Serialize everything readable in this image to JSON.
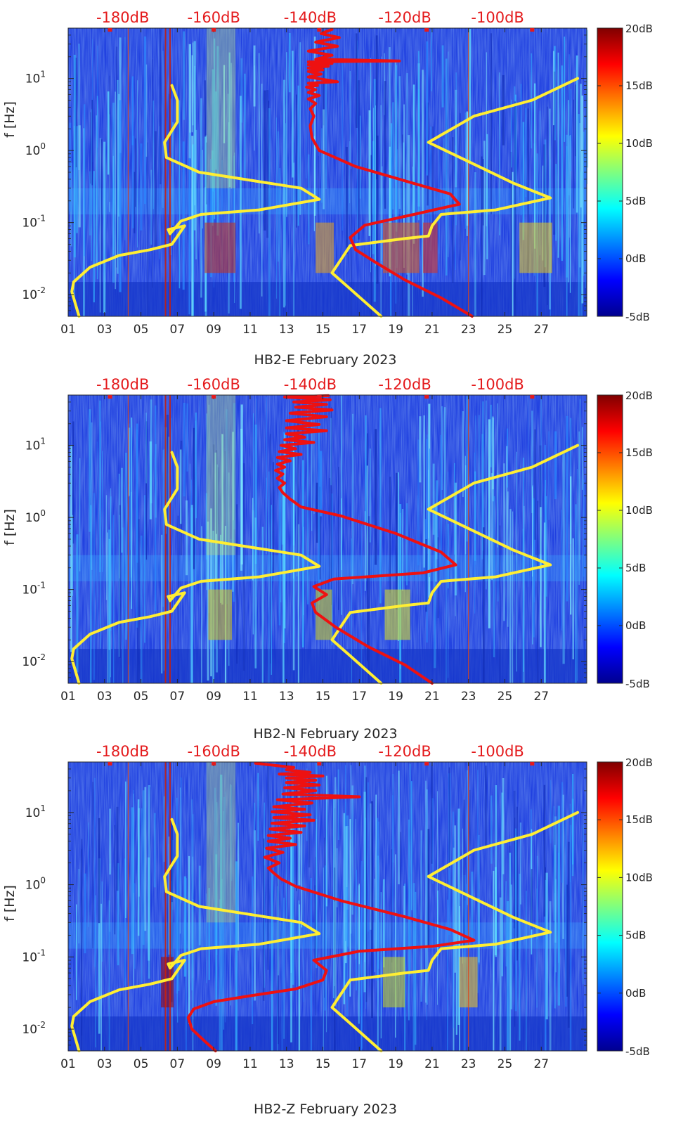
{
  "chart_data": [
    {
      "type": "heatmap",
      "xlabel": "HB2-E February 2023",
      "ylabel": "f [Hz]",
      "x_ticks": [
        "01",
        "03",
        "05",
        "07",
        "09",
        "11",
        "13",
        "15",
        "17",
        "19",
        "21",
        "23",
        "25",
        "27"
      ],
      "y_ticks": [
        "10^-2",
        "10^-1",
        "10^0",
        "10^1"
      ],
      "y_scale": "log",
      "xlim": [
        1,
        29.5
      ],
      "ylim": [
        0.005,
        50
      ],
      "top_axis_labels": [
        "-180dB",
        "-160dB",
        "-140dB",
        "-120dB",
        "-100dB"
      ],
      "colorbar": {
        "labels": [
          "20dB",
          "15dB",
          "10dB",
          "5dB",
          "0dB",
          "-5dB"
        ],
        "range": [
          -5,
          20
        ],
        "colormap": "jet"
      },
      "overlay_series": [
        {
          "color": "#ffee33",
          "x": [
            1.6,
            1.2,
            1.3,
            2.2,
            3.8,
            5.5,
            6.7,
            7.4,
            6.5,
            6.6,
            7.2,
            8.3,
            11.5,
            14.8,
            13.8,
            8.2,
            6.4,
            6.3,
            7.0,
            7.0,
            6.7
          ],
          "y": [
            0.005,
            0.011,
            0.015,
            0.024,
            0.035,
            0.042,
            0.05,
            0.09,
            0.08,
            0.07,
            0.105,
            0.13,
            0.15,
            0.21,
            0.3,
            0.5,
            0.8,
            1.3,
            2.5,
            5,
            8
          ]
        },
        {
          "color": "#ffee33",
          "x": [
            18.2,
            16.5,
            15.5,
            16.5,
            19.5,
            20.8,
            21.0,
            21.5,
            24.5,
            27.5,
            25.5,
            20.8,
            23.3,
            26.5,
            29.0
          ],
          "y": [
            0.005,
            0.012,
            0.02,
            0.048,
            0.06,
            0.065,
            0.09,
            0.13,
            0.15,
            0.22,
            0.35,
            1.3,
            3,
            5,
            10
          ]
        },
        {
          "color": "#ee1111",
          "x": [
            23.2,
            21.5,
            19.5,
            18.0,
            16.8,
            16.5,
            17.3,
            20.0,
            22.5,
            22.0,
            20.0,
            16.8,
            14.8,
            14.4,
            14.3,
            14.5,
            14.3,
            14.6,
            14.2,
            14.8,
            14.2,
            14.6,
            14.1,
            14.7,
            14.2,
            15.8,
            14.2,
            14.9,
            14.2,
            15.0,
            14.2,
            15.3,
            14.2,
            15.5,
            14.2,
            19.2,
            14.6,
            15.5,
            14.2,
            15.8,
            14.6,
            15.9,
            14.9,
            15.5
          ],
          "y": [
            0.005,
            0.009,
            0.016,
            0.027,
            0.042,
            0.062,
            0.092,
            0.13,
            0.18,
            0.25,
            0.35,
            0.6,
            1.0,
            1.5,
            2.2,
            3.0,
            3.8,
            4.5,
            5.2,
            5.8,
            6.4,
            7.0,
            7.6,
            8.0,
            8.6,
            9.0,
            10.5,
            11.5,
            12.5,
            13.2,
            14.0,
            14.8,
            15.5,
            16.2,
            17.0,
            17.5,
            18.5,
            21,
            24,
            28,
            32,
            37,
            42,
            48
          ]
        }
      ]
    },
    {
      "type": "heatmap",
      "xlabel": "HB2-N February 2023",
      "ylabel": "f [Hz]",
      "x_ticks": [
        "01",
        "03",
        "05",
        "07",
        "09",
        "11",
        "13",
        "15",
        "17",
        "19",
        "21",
        "23",
        "25",
        "27"
      ],
      "y_ticks": [
        "10^-2",
        "10^-1",
        "10^0",
        "10^1"
      ],
      "y_scale": "log",
      "xlim": [
        1,
        29.5
      ],
      "ylim": [
        0.005,
        50
      ],
      "top_axis_labels": [
        "-180dB",
        "-160dB",
        "-140dB",
        "-120dB",
        "-100dB"
      ],
      "colorbar": {
        "labels": [
          "20dB",
          "15dB",
          "10dB",
          "5dB",
          "0dB",
          "-5dB"
        ],
        "range": [
          -5,
          20
        ],
        "colormap": "jet"
      },
      "overlay_series": [
        {
          "color": "#ffee33",
          "x": [
            1.6,
            1.2,
            1.3,
            2.2,
            3.8,
            5.5,
            6.7,
            7.4,
            6.5,
            6.6,
            7.2,
            8.3,
            11.5,
            14.8,
            13.8,
            8.2,
            6.4,
            6.3,
            7.0,
            7.0,
            6.7
          ],
          "y": [
            0.005,
            0.011,
            0.015,
            0.024,
            0.035,
            0.042,
            0.05,
            0.09,
            0.08,
            0.07,
            0.105,
            0.13,
            0.15,
            0.21,
            0.3,
            0.5,
            0.8,
            1.3,
            2.5,
            5,
            8
          ]
        },
        {
          "color": "#ffee33",
          "x": [
            18.2,
            16.5,
            15.5,
            16.5,
            19.5,
            20.8,
            21.0,
            21.5,
            24.5,
            27.5,
            25.5,
            20.8,
            23.3,
            26.5,
            29.0
          ],
          "y": [
            0.005,
            0.012,
            0.02,
            0.048,
            0.06,
            0.065,
            0.09,
            0.13,
            0.15,
            0.22,
            0.35,
            1.3,
            3,
            5,
            10
          ]
        },
        {
          "color": "#ee1111",
          "x": [
            21.0,
            19.5,
            17.5,
            15.7,
            14.6,
            14.4,
            15.2,
            14.5,
            15.6,
            20.5,
            22.3,
            21.5,
            19.0,
            16.0,
            13.8,
            13.2,
            12.8,
            12.6,
            12.9,
            12.5,
            12.8,
            12.4,
            12.9,
            12.5,
            13.2,
            12.5,
            13.8,
            12.6,
            13.5,
            12.7,
            14.5,
            12.9,
            14.0,
            13.0,
            15.2,
            13.0,
            14.8,
            13.0,
            15.2,
            13.2,
            15.5,
            13.5,
            15.2,
            13.4,
            15.4,
            12.9,
            15.3
          ],
          "y": [
            0.005,
            0.009,
            0.016,
            0.03,
            0.048,
            0.065,
            0.085,
            0.11,
            0.14,
            0.17,
            0.22,
            0.33,
            0.6,
            1.05,
            1.4,
            1.8,
            2.2,
            2.6,
            3.0,
            3.5,
            4.0,
            4.5,
            5.0,
            5.5,
            6.1,
            6.8,
            7.5,
            8.2,
            9.0,
            10.0,
            11.0,
            12.0,
            13.0,
            14.5,
            16.0,
            17.5,
            19.5,
            22,
            25,
            28,
            31,
            34,
            37,
            40,
            43,
            47,
            49
          ]
        }
      ]
    },
    {
      "type": "heatmap",
      "xlabel": "HB2-Z February 2023",
      "ylabel": "f [Hz]",
      "x_ticks": [
        "01",
        "03",
        "05",
        "07",
        "09",
        "11",
        "13",
        "15",
        "17",
        "19",
        "21",
        "23",
        "25",
        "27"
      ],
      "y_ticks": [
        "10^-2",
        "10^-1",
        "10^0",
        "10^1"
      ],
      "y_scale": "log",
      "xlim": [
        1,
        29.5
      ],
      "ylim": [
        0.005,
        50
      ],
      "top_axis_labels": [
        "-180dB",
        "-160dB",
        "-140dB",
        "-120dB",
        "-100dB"
      ],
      "colorbar": {
        "labels": [
          "20dB",
          "15dB",
          "10dB",
          "5dB",
          "0dB",
          "-5dB"
        ],
        "range": [
          -5,
          20
        ],
        "colormap": "jet"
      },
      "overlay_series": [
        {
          "color": "#ffee33",
          "x": [
            1.6,
            1.2,
            1.3,
            2.2,
            3.8,
            5.5,
            6.7,
            7.4,
            6.5,
            6.6,
            7.2,
            8.3,
            11.5,
            14.8,
            13.8,
            8.2,
            6.4,
            6.3,
            7.0,
            7.0,
            6.7
          ],
          "y": [
            0.005,
            0.011,
            0.015,
            0.024,
            0.035,
            0.042,
            0.05,
            0.09,
            0.08,
            0.07,
            0.105,
            0.13,
            0.15,
            0.21,
            0.3,
            0.5,
            0.8,
            1.3,
            2.5,
            5,
            8
          ]
        },
        {
          "color": "#ffee33",
          "x": [
            18.2,
            16.5,
            15.5,
            16.5,
            19.5,
            20.8,
            21.0,
            21.5,
            24.5,
            27.5,
            25.5,
            20.8,
            23.3,
            26.5,
            29.0
          ],
          "y": [
            0.005,
            0.012,
            0.02,
            0.048,
            0.06,
            0.065,
            0.09,
            0.13,
            0.15,
            0.22,
            0.35,
            1.3,
            3,
            5,
            10
          ]
        },
        {
          "color": "#ee1111",
          "x": [
            9.1,
            8.4,
            7.8,
            7.6,
            7.9,
            9.0,
            11.0,
            13.5,
            15.0,
            15.2,
            14.5,
            17.0,
            21.0,
            23.3,
            22.0,
            19.5,
            16.0,
            13.5,
            12.7,
            12.3,
            12.0,
            12.6,
            11.8,
            12.8,
            11.9,
            13.5,
            12.0,
            13.2,
            12.0,
            13.8,
            12.1,
            14.0,
            12.2,
            14.5,
            12.3,
            14.3,
            12.2,
            14.0,
            12.3,
            14.4,
            12.5,
            17.0,
            12.8,
            14.6,
            12.9,
            14.8,
            13.0,
            14.6,
            13.0,
            15.0,
            12.6,
            14.3,
            13.0,
            13.4,
            11.3
          ],
          "y": [
            0.005,
            0.0072,
            0.01,
            0.0145,
            0.019,
            0.024,
            0.029,
            0.036,
            0.048,
            0.065,
            0.09,
            0.12,
            0.14,
            0.17,
            0.24,
            0.36,
            0.6,
            0.95,
            1.2,
            1.45,
            1.7,
            2.0,
            2.4,
            2.8,
            3.2,
            3.6,
            4.0,
            4.4,
            4.8,
            5.3,
            5.9,
            6.5,
            7.1,
            7.8,
            8.5,
            9.3,
            10.2,
            11.1,
            12.0,
            13.5,
            15.0,
            16.5,
            18.0,
            20,
            22,
            24,
            26,
            28,
            30,
            32,
            34,
            36,
            39,
            42,
            48
          ]
        }
      ]
    }
  ]
}
